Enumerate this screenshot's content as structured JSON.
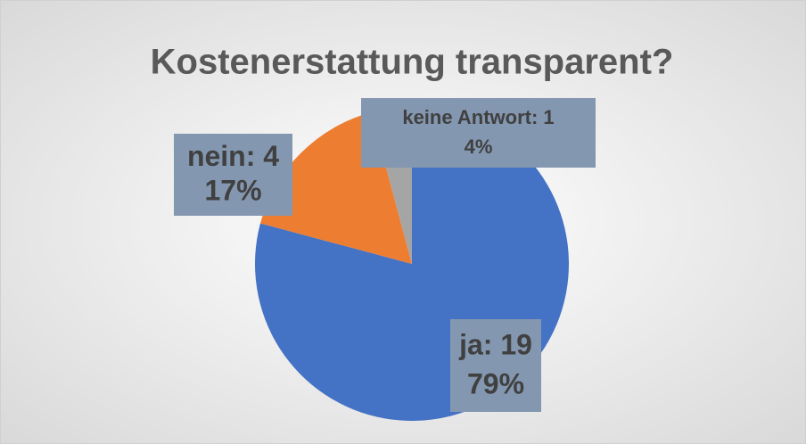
{
  "chart_data": {
    "type": "pie",
    "title": "Kostenerstattung transparent?",
    "categories": [
      "ja",
      "nein",
      "keine Antwort"
    ],
    "values": [
      19,
      4,
      1
    ],
    "value_labels": [
      "ja: 19",
      "nein: 4",
      "keine Antwort: 1"
    ],
    "percents": [
      79,
      17,
      4
    ],
    "percent_labels": [
      "79%",
      "17%",
      "4%"
    ],
    "colors": [
      "#4472c4",
      "#ed7d31",
      "#a5a5a5"
    ]
  }
}
